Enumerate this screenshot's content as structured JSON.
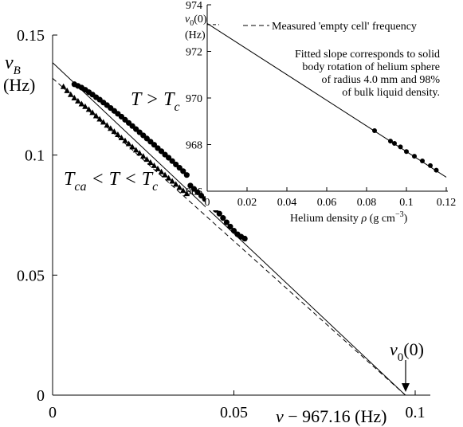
{
  "chart_data": [
    {
      "type": "scatter",
      "xlim": [
        0,
        0.1
      ],
      "ylim": [
        0,
        0.15
      ],
      "xticks": [
        0,
        0.05,
        0.1
      ],
      "xtick_labels": [
        "0",
        "0.05",
        "0.1"
      ],
      "yticks": [
        0,
        0.05,
        0.1,
        0.15
      ],
      "ytick_labels": [
        "0",
        "0.05",
        "0.1",
        "0.15"
      ],
      "ylabel": {
        "main": "ν",
        "sub": "B",
        "unit": "(Hz)"
      },
      "xlabel": {
        "main": "ν − 967.16 (Hz)"
      },
      "grid": false,
      "annotations": {
        "upper_series": "T > T",
        "upper_series_sub": "c",
        "lower_series_a": "T",
        "lower_series_a_sub": "ca",
        "lower_series_b": " < T < T",
        "lower_series_b_sub": "c",
        "nu0": "ν",
        "nu0_sub": "0",
        "nu0_paren": "(0)"
      },
      "fit_lines": [
        {
          "style": "solid",
          "points": [
            [
              0,
              0.1385
            ],
            [
              0.0973,
              0
            ]
          ]
        },
        {
          "style": "dashed",
          "points": [
            [
              0,
              0.132
            ],
            [
              0.0973,
              0
            ]
          ]
        }
      ],
      "series": [
        {
          "marker": "circle",
          "x": [
            0.006,
            0.007,
            0.008,
            0.009,
            0.01,
            0.011,
            0.012,
            0.013,
            0.014,
            0.015,
            0.016,
            0.017,
            0.018,
            0.019,
            0.02,
            0.021,
            0.022,
            0.023,
            0.024,
            0.025,
            0.026,
            0.027,
            0.028,
            0.029,
            0.03,
            0.031,
            0.032,
            0.033,
            0.034,
            0.035,
            0.036,
            0.037,
            0.038,
            0.039,
            0.04,
            0.041,
            0.042,
            0.043,
            0.044,
            0.045,
            0.046,
            0.047,
            0.048,
            0.049,
            0.05,
            0.051,
            0.052,
            0.053
          ],
          "y": [
            0.1295,
            0.1288,
            0.1281,
            0.1272,
            0.1262,
            0.1252,
            0.1241,
            0.1231,
            0.1219,
            0.1208,
            0.1196,
            0.1184,
            0.1172,
            0.116,
            0.1147,
            0.1134,
            0.1121,
            0.1108,
            0.1095,
            0.1082,
            0.1069,
            0.1056,
            0.1043,
            0.1029,
            0.1016,
            0.1002,
            0.0989,
            0.0975,
            0.0961,
            0.0947,
            0.0933,
            0.0917,
            0.0873,
            0.0859,
            0.0845,
            0.0831,
            0.0817,
            0.0803,
            0.0789,
            0.0772,
            0.0756,
            0.0738,
            0.072,
            0.0702,
            0.0685,
            0.067,
            0.066,
            0.0652
          ]
        },
        {
          "marker": "triangle",
          "x": [
            0.003,
            0.004,
            0.005,
            0.006,
            0.007,
            0.008,
            0.009,
            0.01,
            0.011,
            0.012,
            0.013,
            0.014,
            0.015,
            0.016,
            0.017,
            0.018,
            0.019,
            0.02,
            0.021,
            0.022,
            0.023,
            0.024,
            0.025,
            0.026,
            0.027,
            0.028,
            0.029,
            0.03,
            0.031,
            0.032,
            0.033,
            0.034,
            0.035,
            0.036,
            0.037
          ],
          "y": [
            0.1285,
            0.1268,
            0.1252,
            0.1238,
            0.1225,
            0.1213,
            0.1202,
            0.119,
            0.1177,
            0.1163,
            0.115,
            0.1137,
            0.1124,
            0.1111,
            0.1098,
            0.1085,
            0.1072,
            0.106,
            0.1047,
            0.1034,
            0.1021,
            0.1008,
            0.0995,
            0.0982,
            0.0969,
            0.0956,
            0.0943,
            0.093,
            0.0917,
            0.0904,
            0.0891,
            0.0878,
            0.0865,
            0.0852,
            0.0839
          ]
        }
      ]
    },
    {
      "type": "scatter",
      "xlim": [
        0,
        0.12
      ],
      "ylim": [
        966,
        974
      ],
      "xticks": [
        0,
        0.02,
        0.04,
        0.06,
        0.08,
        0.1,
        0.12
      ],
      "xtick_labels": [
        "0",
        "0.02",
        "0.04",
        "0.06",
        "0.08",
        "0.1",
        "0.12"
      ],
      "yticks": [
        966,
        968,
        970,
        972,
        974
      ],
      "ytick_labels": [
        "966",
        "968",
        "970",
        "972",
        "974"
      ],
      "ylabel": {
        "main": "ν",
        "sub": "0",
        "paren": "(0)",
        "unit": "(Hz)"
      },
      "xlabel": {
        "main": "Helium density ",
        "symbol": "ρ",
        "unit": " (g cm",
        "exp": "−3",
        "close": ")"
      },
      "legend": {
        "entry": "Measured 'empty cell' frequency",
        "style": "dashed"
      },
      "note": [
        "Fitted slope corresponds to solid",
        "body rotation of helium sphere",
        "of radius 4.0 mm and 98%",
        "of bulk liquid density."
      ],
      "grid": false,
      "fit_line": {
        "style": "solid",
        "points": [
          [
            0,
            973.2
          ],
          [
            0.12,
            966.6
          ]
        ]
      },
      "reference_line": {
        "style": "dashed",
        "y": 973.15,
        "x_range": [
          0,
          0.006
        ]
      },
      "series": [
        {
          "marker": "circle",
          "x": [
            0.084,
            0.092,
            0.094,
            0.097,
            0.1,
            0.104,
            0.108,
            0.112,
            0.115
          ],
          "y": [
            968.6,
            968.15,
            968.05,
            967.9,
            967.7,
            967.5,
            967.3,
            967.1,
            966.9
          ]
        }
      ]
    }
  ]
}
